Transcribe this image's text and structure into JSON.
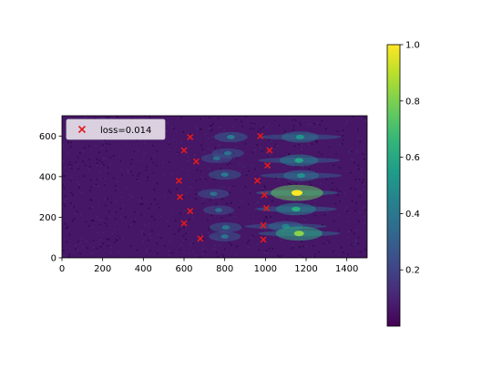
{
  "chart_data": {
    "type": "heatmap",
    "title": "",
    "xlabel": "",
    "ylabel": "",
    "xlim": [
      0,
      1500
    ],
    "ylim": [
      0,
      700
    ],
    "x_ticks": [
      0,
      200,
      400,
      600,
      800,
      1000,
      1200,
      1400
    ],
    "y_ticks": [
      0,
      200,
      400,
      600
    ],
    "colormap": "viridis",
    "colorbar": {
      "range": [
        0.0,
        1.0
      ],
      "ticks": [
        0.2,
        0.4,
        0.6,
        0.8,
        1.0
      ],
      "tick_labels": [
        "0.2",
        "0.4",
        "0.6",
        "0.8",
        "1.0"
      ]
    },
    "legend": {
      "placement": "top-left",
      "entries": [
        {
          "label": "loss=0.014",
          "marker": "x",
          "color": "#e41a1c"
        }
      ]
    },
    "markers_x": [
      {
        "x": 630,
        "y": 595
      },
      {
        "x": 600,
        "y": 530
      },
      {
        "x": 660,
        "y": 475
      },
      {
        "x": 575,
        "y": 380
      },
      {
        "x": 580,
        "y": 300
      },
      {
        "x": 630,
        "y": 230
      },
      {
        "x": 600,
        "y": 170
      },
      {
        "x": 680,
        "y": 95
      },
      {
        "x": 975,
        "y": 600
      },
      {
        "x": 1020,
        "y": 530
      },
      {
        "x": 1010,
        "y": 455
      },
      {
        "x": 960,
        "y": 380
      },
      {
        "x": 995,
        "y": 310
      },
      {
        "x": 1005,
        "y": 245
      },
      {
        "x": 990,
        "y": 160
      },
      {
        "x": 990,
        "y": 90
      }
    ],
    "peaks": [
      {
        "x": 830,
        "y": 595,
        "intensity": 0.42
      },
      {
        "x": 815,
        "y": 515,
        "intensity": 0.38
      },
      {
        "x": 760,
        "y": 490,
        "intensity": 0.35
      },
      {
        "x": 800,
        "y": 410,
        "intensity": 0.4
      },
      {
        "x": 745,
        "y": 315,
        "intensity": 0.36
      },
      {
        "x": 770,
        "y": 235,
        "intensity": 0.34
      },
      {
        "x": 805,
        "y": 150,
        "intensity": 0.4
      },
      {
        "x": 800,
        "y": 105,
        "intensity": 0.38
      },
      {
        "x": 1170,
        "y": 595,
        "intensity": 0.52
      },
      {
        "x": 1165,
        "y": 480,
        "intensity": 0.58
      },
      {
        "x": 1175,
        "y": 405,
        "intensity": 0.5
      },
      {
        "x": 1155,
        "y": 320,
        "intensity": 1.0
      },
      {
        "x": 1150,
        "y": 240,
        "intensity": 0.62
      },
      {
        "x": 1100,
        "y": 155,
        "intensity": 0.45
      },
      {
        "x": 1165,
        "y": 120,
        "intensity": 0.82
      }
    ]
  }
}
